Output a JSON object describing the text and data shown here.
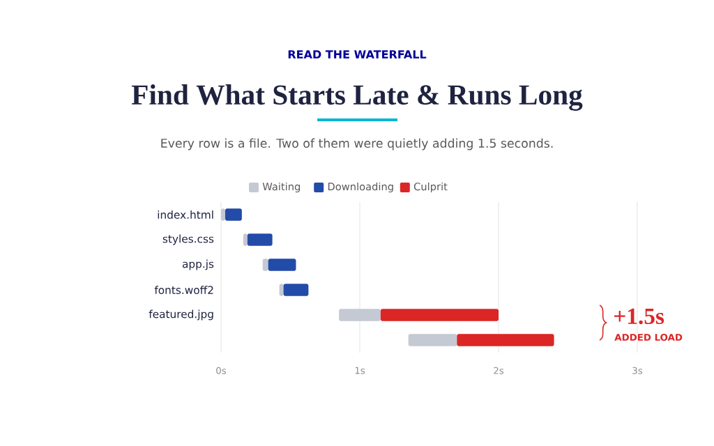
{
  "chart_data": {
    "type": "bar",
    "orientation": "horizontal",
    "title": "Find What Starts Late & Runs Long",
    "subtitle": "Every row is a file. Two of them were quietly adding 1.5 seconds.",
    "annotations": [
      "READ THE WATERFALL",
      "+1.5s",
      "ADDED LOAD"
    ],
    "categories": [
      "index.html",
      "styles.css",
      "app.js",
      "fonts.woff2",
      "featured.jpg",
      null
    ],
    "series": [
      {
        "name": "Waiting",
        "color": "#c5c9d3",
        "base": [
          0,
          0.16,
          0.3,
          0.42,
          0.85,
          1.35
        ],
        "values": [
          0.03,
          0.03,
          0.04,
          0.03,
          0.3,
          0.35
        ]
      },
      {
        "name": "Downloading",
        "color": "#234ba8",
        "base": [
          0.03,
          0.19,
          0.34,
          0.45,
          null,
          null
        ],
        "values": [
          0.12,
          0.18,
          0.2,
          0.18,
          null,
          null
        ]
      },
      {
        "name": "Culprit",
        "color": "#dc2626",
        "base": [
          null,
          null,
          null,
          null,
          1.15,
          1.7
        ],
        "values": [
          null,
          null,
          null,
          null,
          0.85,
          0.7
        ]
      }
    ],
    "xlim": [
      0,
      3
    ],
    "xticks": [
      {
        "value": 0,
        "label": "0s"
      },
      {
        "value": 1,
        "label": "1s"
      },
      {
        "value": 2,
        "label": "2s"
      },
      {
        "value": 3,
        "label": "3s"
      }
    ],
    "grid": "x",
    "legend": "top"
  }
}
